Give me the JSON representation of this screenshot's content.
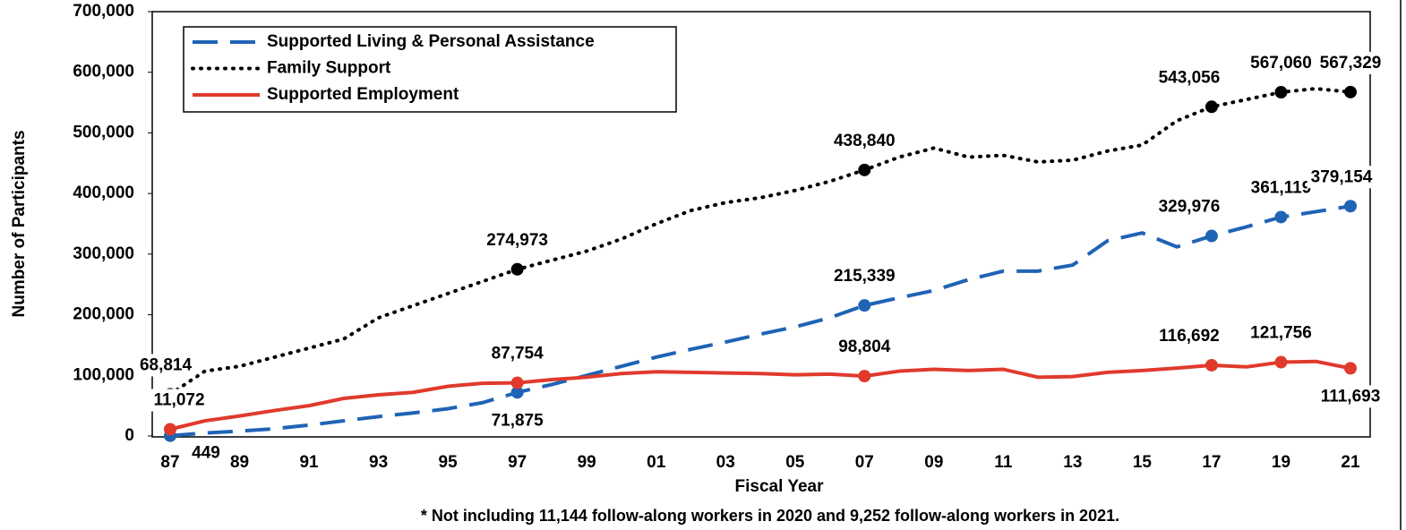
{
  "chart_data": {
    "type": "line",
    "x_label": "Fiscal Year",
    "y_label": "Number of Participants",
    "footnote": "* Not including 11,144 follow-along workers in 2020 and 9,252 follow-along workers in 2021.",
    "categories": [
      "87",
      null,
      "89",
      null,
      "91",
      null,
      "93",
      null,
      "95",
      null,
      "97",
      null,
      "99",
      null,
      "01",
      null,
      "03",
      null,
      "05",
      null,
      "07",
      null,
      "09",
      null,
      "11",
      null,
      "13",
      null,
      "15",
      null,
      "17",
      null,
      "19",
      null,
      "21"
    ],
    "ylim": [
      0,
      700000
    ],
    "yticks": [
      0,
      {
        "value": 100000,
        "label": "100,000"
      },
      {
        "value": 200000,
        "label": "200,000"
      },
      {
        "value": 300000,
        "label": "300,000"
      },
      {
        "value": 400000,
        "label": "400,000"
      },
      {
        "value": 500000,
        "label": "500,000"
      },
      {
        "value": 600000,
        "label": "600,000"
      },
      {
        "value": 700000,
        "label": "700,000"
      }
    ],
    "legend": "upper left",
    "series": [
      {
        "name": "Supported Living & Personal Assistance",
        "color": "#1f63b5",
        "style": "dashed",
        "values": [
          449,
          5000,
          8000,
          12000,
          18000,
          25000,
          32000,
          38000,
          45000,
          55000,
          71875,
          85000,
          100000,
          115000,
          130000,
          143000,
          155000,
          168000,
          180000,
          195000,
          215339,
          228000,
          240000,
          258000,
          272000,
          272000,
          282000,
          322000,
          335000,
          312000,
          329976,
          345000,
          361119,
          370000,
          379154
        ],
        "value_labels": [
          "449",
          null,
          null,
          null,
          null,
          null,
          null,
          null,
          null,
          null,
          "71,875",
          null,
          null,
          null,
          null,
          null,
          null,
          null,
          null,
          null,
          "215,339",
          null,
          null,
          null,
          null,
          null,
          null,
          null,
          null,
          null,
          "329,976",
          null,
          "361,119",
          null,
          "379,154"
        ]
      },
      {
        "name": "Family Support",
        "color": "#000000",
        "style": "dotted",
        "values": [
          68814,
          107000,
          115000,
          130000,
          145000,
          160000,
          195000,
          215000,
          235000,
          255000,
          274973,
          290000,
          305000,
          325000,
          350000,
          372000,
          385000,
          393000,
          405000,
          420000,
          438840,
          460000,
          475000,
          460000,
          463000,
          452000,
          455000,
          470000,
          480000,
          520000,
          543056,
          555000,
          567060,
          573000,
          567329
        ],
        "value_labels": [
          "68,814",
          null,
          null,
          null,
          null,
          null,
          null,
          null,
          null,
          null,
          "274,973",
          null,
          null,
          null,
          null,
          null,
          null,
          null,
          null,
          null,
          "438,840",
          null,
          null,
          null,
          null,
          null,
          null,
          null,
          null,
          null,
          "543,056",
          null,
          "567,060",
          null,
          "567,329"
        ]
      },
      {
        "name": "Supported Employment",
        "color": "#e03a2c",
        "style": "solid",
        "values": [
          11072,
          25000,
          33000,
          42000,
          50000,
          62000,
          68000,
          72000,
          82000,
          87000,
          87754,
          93000,
          97000,
          103000,
          106000,
          105000,
          104000,
          103000,
          101000,
          102000,
          98804,
          107000,
          110000,
          108000,
          110000,
          97000,
          98000,
          105000,
          108000,
          112000,
          116692,
          114000,
          121756,
          123000,
          111693
        ],
        "value_labels": [
          "11,072",
          null,
          null,
          null,
          null,
          null,
          null,
          null,
          null,
          null,
          "87,754",
          null,
          null,
          null,
          null,
          null,
          null,
          null,
          null,
          null,
          "98,804",
          null,
          null,
          null,
          null,
          null,
          null,
          null,
          null,
          null,
          "116,692",
          null,
          "121,756",
          null,
          "111,693"
        ]
      }
    ]
  }
}
